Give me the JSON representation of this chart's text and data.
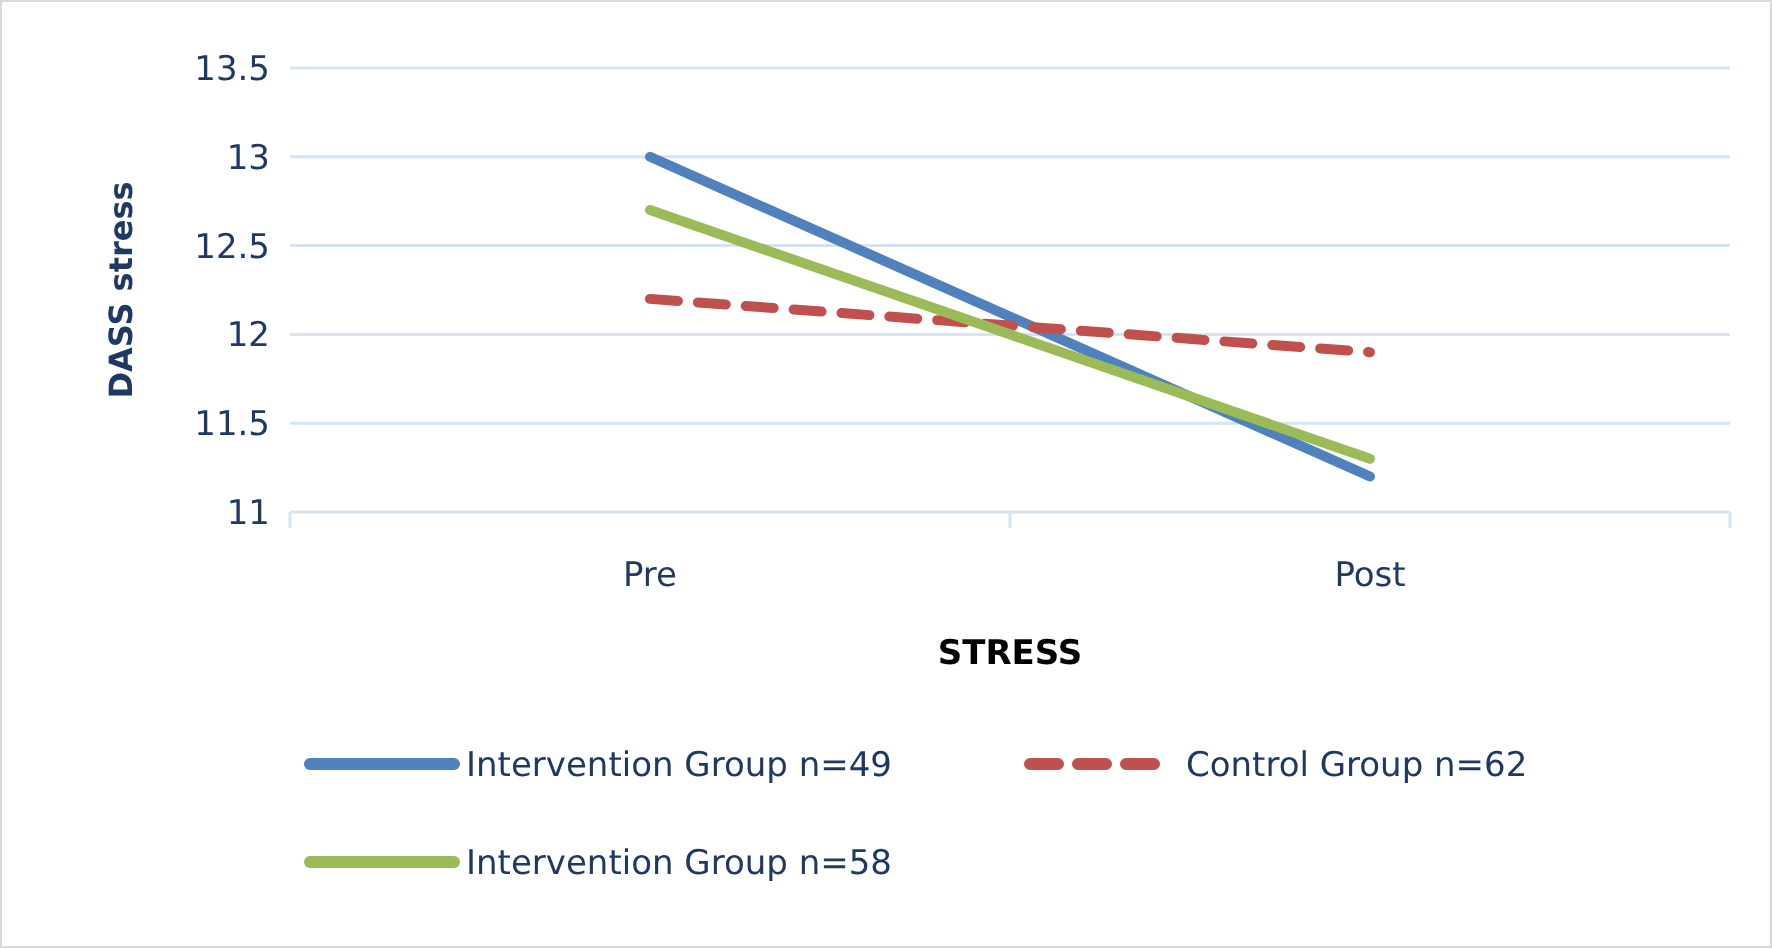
{
  "chart_data": {
    "type": "line",
    "xlabel": "STRESS",
    "ylabel": "DASS stress",
    "categories": [
      "Pre",
      "Post"
    ],
    "series": [
      {
        "name": "Intervention Group n=49",
        "color": "#4f81bd",
        "values": [
          13.0,
          11.2
        ],
        "line_style": "solid"
      },
      {
        "name": "Control Group n=62",
        "color": "#c0504d",
        "values": [
          12.2,
          11.9
        ],
        "line_style": "dashed"
      },
      {
        "name": "Intervention Group n=58",
        "color": "#9bbb59",
        "values": [
          12.7,
          11.3
        ],
        "line_style": "solid"
      }
    ],
    "ylim": [
      11,
      13.5
    ],
    "yticks": [
      11,
      {
        "value": 11.5,
        "label": "11.5"
      },
      12,
      {
        "value": 12.5,
        "label": "12.5"
      },
      13,
      {
        "value": 13.5,
        "label": "13.5"
      }
    ],
    "grid": "y",
    "legend": "bottom",
    "marker": "none"
  }
}
